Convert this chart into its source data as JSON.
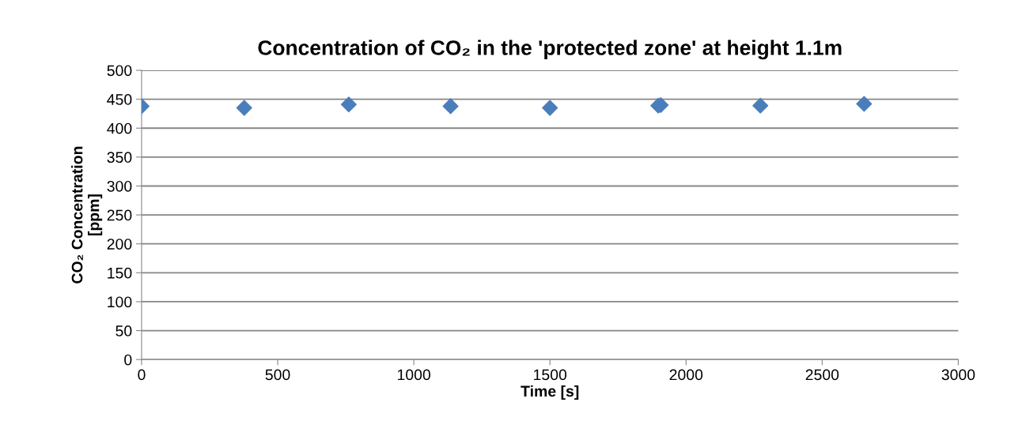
{
  "chart_data": {
    "type": "scatter",
    "title": "Concentration of CO₂ in the 'protected zone' at height 1.1m",
    "xlabel": "Time [s]",
    "ylabel": "CO₂ Concentration\n[ppm]",
    "x": [
      0,
      377,
      761,
      1135,
      1500,
      1898,
      1907,
      2273,
      2654
    ],
    "series": [
      {
        "color": "#4a7ebb",
        "values": [
          438,
          435,
          441,
          438,
          435,
          439,
          440,
          439,
          442
        ]
      }
    ],
    "marker": "diamond",
    "xlim": [
      0,
      3000
    ],
    "xticks": [
      0,
      500,
      1000,
      1500,
      2000,
      2500,
      3000
    ],
    "ylim": [
      0,
      500
    ],
    "yticks": [
      0,
      50,
      100,
      150,
      200,
      250,
      300,
      350,
      400,
      450,
      500
    ],
    "grid": "y",
    "legend": false
  }
}
